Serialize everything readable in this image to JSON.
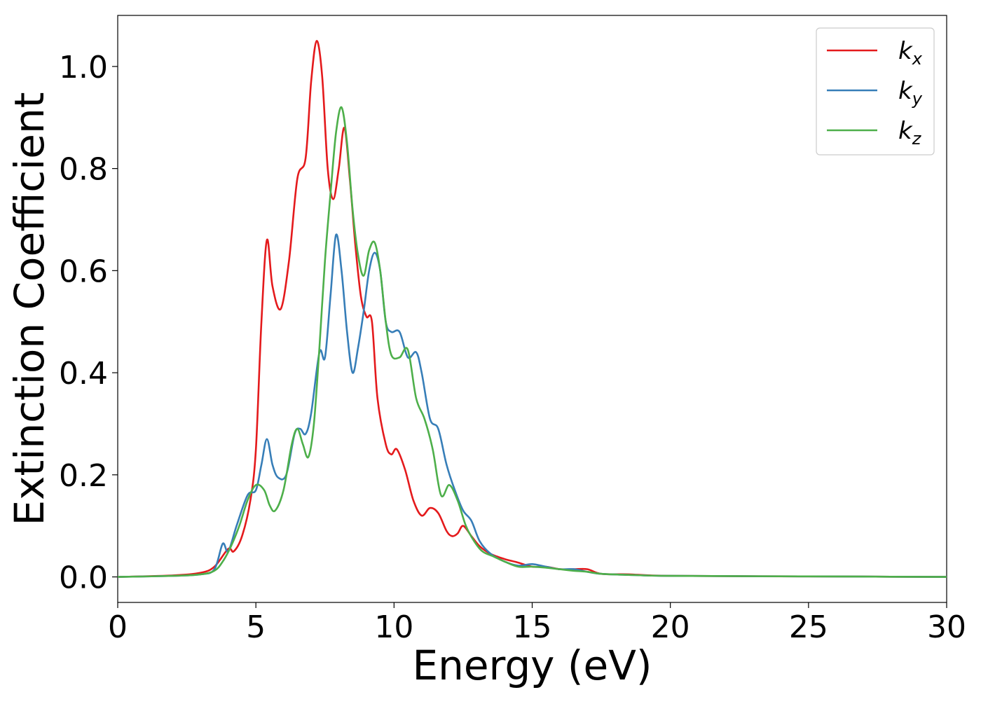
{
  "chart_data": {
    "type": "line",
    "title": "",
    "xlabel": "Energy (eV)",
    "ylabel": "Extinction Coefficient",
    "xlim": [
      0,
      30
    ],
    "ylim": [
      -0.05,
      1.1
    ],
    "xticks": [
      0,
      5,
      10,
      15,
      20,
      25,
      30
    ],
    "xtick_labels": [
      "0",
      "5",
      "10",
      "15",
      "20",
      "25",
      "30"
    ],
    "yticks": [
      0.0,
      0.2,
      0.4,
      0.6,
      0.8,
      1.0
    ],
    "ytick_labels": [
      "0.0",
      "0.2",
      "0.4",
      "0.6",
      "0.8",
      "1.0"
    ],
    "grid": false,
    "legend_position": "top-right",
    "series": [
      {
        "name": "k_x",
        "label_main": "k",
        "label_sub": "x",
        "color": "#e41a1c",
        "points": [
          [
            0,
            0
          ],
          [
            2,
            0.003
          ],
          [
            3,
            0.008
          ],
          [
            3.5,
            0.02
          ],
          [
            4,
            0.055
          ],
          [
            4.2,
            0.05
          ],
          [
            4.5,
            0.08
          ],
          [
            4.8,
            0.15
          ],
          [
            5.0,
            0.25
          ],
          [
            5.2,
            0.5
          ],
          [
            5.4,
            0.66
          ],
          [
            5.6,
            0.57
          ],
          [
            5.9,
            0.525
          ],
          [
            6.2,
            0.62
          ],
          [
            6.5,
            0.78
          ],
          [
            6.8,
            0.82
          ],
          [
            7.0,
            0.97
          ],
          [
            7.2,
            1.05
          ],
          [
            7.4,
            0.98
          ],
          [
            7.6,
            0.8
          ],
          [
            7.8,
            0.74
          ],
          [
            8.0,
            0.8
          ],
          [
            8.2,
            0.88
          ],
          [
            8.4,
            0.78
          ],
          [
            8.6,
            0.65
          ],
          [
            8.8,
            0.55
          ],
          [
            9.0,
            0.51
          ],
          [
            9.2,
            0.5
          ],
          [
            9.4,
            0.35
          ],
          [
            9.7,
            0.26
          ],
          [
            9.9,
            0.24
          ],
          [
            10.1,
            0.25
          ],
          [
            10.4,
            0.21
          ],
          [
            10.7,
            0.15
          ],
          [
            11.0,
            0.12
          ],
          [
            11.3,
            0.135
          ],
          [
            11.6,
            0.125
          ],
          [
            11.9,
            0.09
          ],
          [
            12.1,
            0.08
          ],
          [
            12.3,
            0.085
          ],
          [
            12.5,
            0.1
          ],
          [
            12.8,
            0.08
          ],
          [
            13.1,
            0.06
          ],
          [
            13.5,
            0.045
          ],
          [
            14.0,
            0.035
          ],
          [
            14.5,
            0.028
          ],
          [
            15.0,
            0.02
          ],
          [
            15.5,
            0.02
          ],
          [
            16.0,
            0.015
          ],
          [
            16.5,
            0.015
          ],
          [
            17.0,
            0.015
          ],
          [
            17.5,
            0.006
          ],
          [
            18.5,
            0.005
          ],
          [
            20,
            0.002
          ],
          [
            25,
            0.001
          ],
          [
            30,
            0.0
          ]
        ]
      },
      {
        "name": "k_y",
        "label_main": "k",
        "label_sub": "y",
        "color": "#377eb8",
        "points": [
          [
            0,
            0
          ],
          [
            2,
            0.002
          ],
          [
            3,
            0.005
          ],
          [
            3.5,
            0.015
          ],
          [
            3.8,
            0.065
          ],
          [
            4.0,
            0.05
          ],
          [
            4.3,
            0.1
          ],
          [
            4.7,
            0.16
          ],
          [
            5.0,
            0.17
          ],
          [
            5.2,
            0.22
          ],
          [
            5.4,
            0.27
          ],
          [
            5.6,
            0.22
          ],
          [
            5.8,
            0.195
          ],
          [
            6.1,
            0.2
          ],
          [
            6.4,
            0.28
          ],
          [
            6.6,
            0.29
          ],
          [
            6.8,
            0.28
          ],
          [
            7.0,
            0.32
          ],
          [
            7.3,
            0.44
          ],
          [
            7.5,
            0.43
          ],
          [
            7.7,
            0.55
          ],
          [
            7.9,
            0.67
          ],
          [
            8.1,
            0.6
          ],
          [
            8.3,
            0.48
          ],
          [
            8.5,
            0.4
          ],
          [
            8.7,
            0.45
          ],
          [
            8.9,
            0.52
          ],
          [
            9.1,
            0.6
          ],
          [
            9.3,
            0.635
          ],
          [
            9.5,
            0.6
          ],
          [
            9.7,
            0.5
          ],
          [
            9.9,
            0.48
          ],
          [
            10.2,
            0.48
          ],
          [
            10.5,
            0.43
          ],
          [
            10.8,
            0.44
          ],
          [
            11.0,
            0.4
          ],
          [
            11.3,
            0.31
          ],
          [
            11.6,
            0.29
          ],
          [
            11.9,
            0.22
          ],
          [
            12.2,
            0.17
          ],
          [
            12.5,
            0.13
          ],
          [
            12.8,
            0.11
          ],
          [
            13.1,
            0.07
          ],
          [
            13.5,
            0.045
          ],
          [
            14.0,
            0.03
          ],
          [
            14.5,
            0.022
          ],
          [
            15.0,
            0.025
          ],
          [
            15.5,
            0.02
          ],
          [
            16.0,
            0.015
          ],
          [
            16.5,
            0.015
          ],
          [
            17.0,
            0.01
          ],
          [
            17.5,
            0.006
          ],
          [
            18.5,
            0.004
          ],
          [
            20,
            0.002
          ],
          [
            25,
            0.001
          ],
          [
            30,
            0.0
          ]
        ]
      },
      {
        "name": "k_z",
        "label_main": "k",
        "label_sub": "z",
        "color": "#4daf4a",
        "points": [
          [
            0,
            0
          ],
          [
            2,
            0.002
          ],
          [
            3,
            0.005
          ],
          [
            3.5,
            0.012
          ],
          [
            3.8,
            0.03
          ],
          [
            4.1,
            0.06
          ],
          [
            4.4,
            0.1
          ],
          [
            4.7,
            0.15
          ],
          [
            5.0,
            0.18
          ],
          [
            5.3,
            0.17
          ],
          [
            5.5,
            0.14
          ],
          [
            5.7,
            0.13
          ],
          [
            6.0,
            0.17
          ],
          [
            6.3,
            0.26
          ],
          [
            6.5,
            0.29
          ],
          [
            6.7,
            0.26
          ],
          [
            6.9,
            0.235
          ],
          [
            7.1,
            0.3
          ],
          [
            7.3,
            0.45
          ],
          [
            7.5,
            0.62
          ],
          [
            7.7,
            0.75
          ],
          [
            7.9,
            0.87
          ],
          [
            8.1,
            0.92
          ],
          [
            8.3,
            0.85
          ],
          [
            8.5,
            0.72
          ],
          [
            8.7,
            0.63
          ],
          [
            8.9,
            0.59
          ],
          [
            9.1,
            0.64
          ],
          [
            9.3,
            0.655
          ],
          [
            9.5,
            0.6
          ],
          [
            9.7,
            0.5
          ],
          [
            9.9,
            0.435
          ],
          [
            10.2,
            0.43
          ],
          [
            10.5,
            0.445
          ],
          [
            10.8,
            0.35
          ],
          [
            11.1,
            0.31
          ],
          [
            11.4,
            0.25
          ],
          [
            11.7,
            0.16
          ],
          [
            12.0,
            0.18
          ],
          [
            12.3,
            0.15
          ],
          [
            12.6,
            0.1
          ],
          [
            12.9,
            0.07
          ],
          [
            13.2,
            0.05
          ],
          [
            13.6,
            0.04
          ],
          [
            14.0,
            0.03
          ],
          [
            14.5,
            0.02
          ],
          [
            15.0,
            0.02
          ],
          [
            15.5,
            0.018
          ],
          [
            16.0,
            0.015
          ],
          [
            16.5,
            0.012
          ],
          [
            17.0,
            0.01
          ],
          [
            17.5,
            0.006
          ],
          [
            18.5,
            0.004
          ],
          [
            20,
            0.002
          ],
          [
            25,
            0.001
          ],
          [
            30,
            0.0
          ]
        ]
      }
    ]
  }
}
